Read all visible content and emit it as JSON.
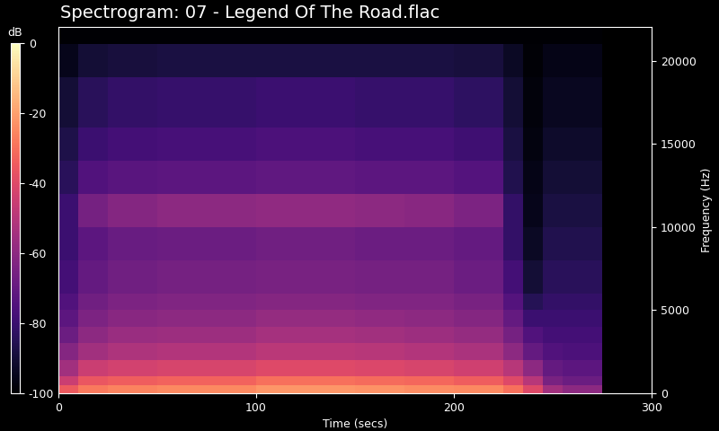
{
  "chart_data": {
    "type": "spectrogram",
    "title": "Spectrogram: 07 - Legend Of The Road.flac",
    "x_label": "Time (secs)",
    "y_label": "Frequency (Hz)",
    "xlim": [
      0,
      300
    ],
    "xticks": [
      0,
      100,
      200,
      300
    ],
    "ylim": [
      0,
      22050
    ],
    "yticks": [
      0,
      5000,
      10000,
      15000,
      20000
    ],
    "color": "magma",
    "time_edges": [
      0,
      10,
      25,
      50,
      75,
      100,
      125,
      150,
      175,
      200,
      225,
      235,
      245,
      255,
      275
    ],
    "frequency_edges": [
      0,
      500,
      1000,
      2000,
      3000,
      4000,
      5000,
      6000,
      8000,
      10000,
      12000,
      14000,
      16000,
      19000,
      21000,
      22050
    ],
    "cells": [
      [
        -35,
        -28,
        -26,
        -25,
        -25,
        -22,
        -22,
        -23,
        -24,
        -25,
        -30,
        -40,
        -55,
        -60
      ],
      [
        -45,
        -36,
        -34,
        -33,
        -33,
        -30,
        -30,
        -31,
        -32,
        -34,
        -40,
        -50,
        -65,
        -68
      ],
      [
        -55,
        -45,
        -43,
        -42,
        -42,
        -40,
        -40,
        -41,
        -42,
        -44,
        -50,
        -60,
        -70,
        -72
      ],
      [
        -62,
        -55,
        -52,
        -51,
        -51,
        -49,
        -49,
        -50,
        -51,
        -53,
        -60,
        -70,
        -75,
        -76
      ],
      [
        -68,
        -60,
        -57,
        -56,
        -56,
        -54,
        -54,
        -55,
        -56,
        -58,
        -66,
        -75,
        -78,
        -78
      ],
      [
        -72,
        -64,
        -61,
        -60,
        -60,
        -58,
        -58,
        -59,
        -60,
        -62,
        -70,
        -80,
        -80,
        -80
      ],
      [
        -75,
        -67,
        -64,
        -63,
        -63,
        -62,
        -62,
        -63,
        -63,
        -65,
        -74,
        -85,
        -82,
        -82
      ],
      [
        -78,
        -70,
        -67,
        -66,
        -66,
        -65,
        -65,
        -66,
        -66,
        -68,
        -78,
        -90,
        -84,
        -84
      ],
      [
        -80,
        -72,
        -69,
        -68,
        -68,
        -67,
        -67,
        -68,
        -68,
        -70,
        -82,
        -93,
        -86,
        -86
      ],
      [
        -80,
        -66,
        -62,
        -60,
        -60,
        -59,
        -59,
        -60,
        -61,
        -64,
        -82,
        -95,
        -88,
        -88
      ],
      [
        -84,
        -75,
        -73,
        -72,
        -72,
        -71,
        -71,
        -72,
        -72,
        -74,
        -86,
        -96,
        -90,
        -90
      ],
      [
        -87,
        -80,
        -78,
        -77,
        -77,
        -76,
        -76,
        -77,
        -77,
        -79,
        -88,
        -97,
        -92,
        -92
      ],
      [
        -90,
        -84,
        -82,
        -81,
        -81,
        -80,
        -80,
        -81,
        -81,
        -83,
        -90,
        -98,
        -94,
        -94
      ],
      [
        -95,
        -90,
        -89,
        -88,
        -88,
        -88,
        -88,
        -88,
        -88,
        -89,
        -93,
        -99,
        -96,
        -96
      ],
      [
        -100,
        -100,
        -100,
        -100,
        -100,
        -100,
        -100,
        -100,
        -100,
        -100,
        -100,
        -100,
        -100,
        -100
      ]
    ],
    "colorbar": {
      "label": "dB",
      "range": [
        -100,
        0
      ],
      "ticks": [
        0,
        -20,
        -40,
        -60,
        -80,
        -100
      ]
    }
  }
}
